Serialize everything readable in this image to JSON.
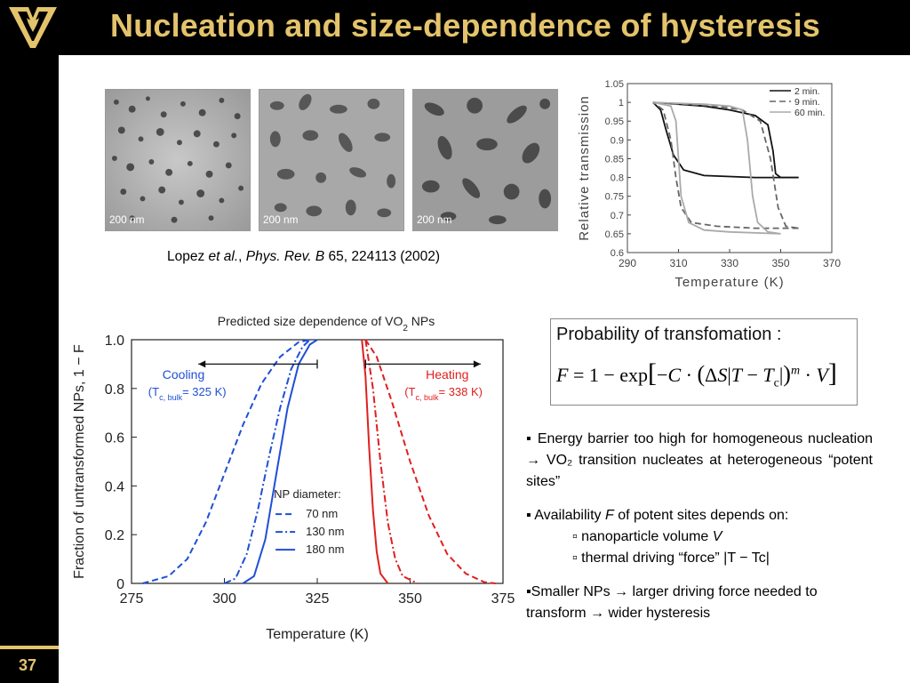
{
  "header": {
    "title": "Nucleation and size-dependence of hysteresis"
  },
  "sidebar": {
    "slide_number": "37"
  },
  "tem_images": [
    {
      "scale_label": "200 nm"
    },
    {
      "scale_label": "200 nm"
    },
    {
      "scale_label": "200 nm"
    }
  ],
  "citation": {
    "authors": "Lopez ",
    "etal": "et al.",
    "sep": ", ",
    "journal": "Phys. Rev. B",
    "ref": " 65, 224113 (2002)"
  },
  "formula": {
    "heading": "Probability of transfomation :",
    "equation": "F = 1 − exp[ −C · (ΔS|T − T"
  },
  "bullets": {
    "b1": "Energy barrier too high for homogeneous nucleation → VO₂ transition nucleates at heterogeneous “potent sites”",
    "b2_pre": "Availability ",
    "b2_var": "F",
    "b2_post": " of potent sites depends on:",
    "b2a_pre": "nanoparticle volume ",
    "b2a_var": "V",
    "b2b": "thermal driving “force” |T − Tc|",
    "b3": "Smaller NPs → larger driving force needed to transform → wider hysteresis"
  },
  "chart_data": [
    {
      "type": "line",
      "title": "",
      "xlabel": "Temperature (K)",
      "ylabel": "Relative transmission",
      "xlim": [
        290,
        370
      ],
      "ylim": [
        0.6,
        1.05
      ],
      "xticks": [
        "290",
        "310",
        "330",
        "350",
        "370"
      ],
      "yticks": [
        "0.6",
        "0.65",
        "0.7",
        "0.75",
        "0.8",
        "0.85",
        "0.9",
        "0.95",
        "1",
        "1.05"
      ],
      "legend_position": "top-right",
      "series": [
        {
          "name": "2 min.",
          "style": "solid",
          "color": "#111111",
          "heating": [
            [
              300,
              1.0
            ],
            [
              320,
              0.99
            ],
            [
              330,
              0.98
            ],
            [
              340,
              0.965
            ],
            [
              345,
              0.94
            ],
            [
              347,
              0.87
            ],
            [
              348,
              0.81
            ],
            [
              350,
              0.8
            ],
            [
              357,
              0.8
            ]
          ],
          "cooling": [
            [
              357,
              0.8
            ],
            [
              340,
              0.8
            ],
            [
              320,
              0.805
            ],
            [
              312,
              0.82
            ],
            [
              308,
              0.86
            ],
            [
              305,
              0.93
            ],
            [
              303,
              0.98
            ],
            [
              300,
              1.0
            ]
          ]
        },
        {
          "name": "9 min.",
          "style": "dashed",
          "color": "#666666",
          "heating": [
            [
              300,
              1.0
            ],
            [
              325,
              0.99
            ],
            [
              335,
              0.98
            ],
            [
              342,
              0.95
            ],
            [
              346,
              0.85
            ],
            [
              349,
              0.72
            ],
            [
              352,
              0.67
            ],
            [
              357,
              0.665
            ]
          ],
          "cooling": [
            [
              357,
              0.665
            ],
            [
              340,
              0.665
            ],
            [
              325,
              0.67
            ],
            [
              315,
              0.68
            ],
            [
              311,
              0.72
            ],
            [
              309,
              0.8
            ],
            [
              307,
              0.9
            ],
            [
              304,
              0.98
            ],
            [
              300,
              1.0
            ]
          ]
        },
        {
          "name": "60 min.",
          "style": "solid",
          "color": "#aaaaaa",
          "heating": [
            [
              300,
              1.0
            ],
            [
              320,
              0.995
            ],
            [
              330,
              0.99
            ],
            [
              335,
              0.98
            ],
            [
              337,
              0.9
            ],
            [
              339,
              0.75
            ],
            [
              341,
              0.68
            ],
            [
              345,
              0.655
            ],
            [
              350,
              0.65
            ]
          ],
          "cooling": [
            [
              350,
              0.65
            ],
            [
              330,
              0.655
            ],
            [
              320,
              0.66
            ],
            [
              314,
              0.68
            ],
            [
              311,
              0.75
            ],
            [
              310,
              0.85
            ],
            [
              309,
              0.95
            ],
            [
              307,
              0.99
            ],
            [
              300,
              1.0
            ]
          ]
        }
      ]
    },
    {
      "type": "line",
      "title": "Predicted size dependence of VO",
      "title_sub": "2",
      "title_tail": " NPs",
      "xlabel": "Temperature (K)",
      "ylabel": "Fraction of untransformed NPs, 1 − F",
      "xlim": [
        275,
        375
      ],
      "ylim": [
        0,
        1
      ],
      "xticks": [
        "275",
        "300",
        "325",
        "350",
        "375"
      ],
      "yticks": [
        "0",
        "0.2",
        "0.4",
        "0.6",
        "0.8",
        "1.0"
      ],
      "legend_title": "NP diameter:",
      "legend_position": "center",
      "annotations": {
        "cooling_label": "Cooling",
        "cooling_tc": "(T",
        "cooling_tc_sub": "c, bulk",
        "cooling_tc_tail": "= 325 K)",
        "heating_label": "Heating",
        "heating_tc": "(T",
        "heating_tc_sub": "c, bulk",
        "heating_tc_tail": "= 338 K)"
      },
      "colors": {
        "cooling": "#1f4fd6",
        "heating": "#e02020"
      },
      "series": [
        {
          "name": "70 nm",
          "style": "dashed",
          "cooling": [
            [
              278,
              0.0
            ],
            [
              285,
              0.03
            ],
            [
              290,
              0.1
            ],
            [
              295,
              0.25
            ],
            [
              300,
              0.45
            ],
            [
              305,
              0.65
            ],
            [
              310,
              0.82
            ],
            [
              315,
              0.93
            ],
            [
              320,
              0.99
            ],
            [
              323,
              1.0
            ]
          ],
          "heating": [
            [
              338,
              1.0
            ],
            [
              341,
              0.93
            ],
            [
              345,
              0.75
            ],
            [
              350,
              0.5
            ],
            [
              355,
              0.28
            ],
            [
              360,
              0.12
            ],
            [
              365,
              0.04
            ],
            [
              370,
              0.005
            ],
            [
              373,
              0.0
            ]
          ]
        },
        {
          "name": "130 nm",
          "style": "dashdot",
          "cooling": [
            [
              300,
              0.0
            ],
            [
              303,
              0.02
            ],
            [
              306,
              0.12
            ],
            [
              309,
              0.3
            ],
            [
              312,
              0.52
            ],
            [
              315,
              0.72
            ],
            [
              318,
              0.88
            ],
            [
              321,
              0.97
            ],
            [
              323,
              1.0
            ]
          ],
          "heating": [
            [
              338,
              1.0
            ],
            [
              340,
              0.8
            ],
            [
              342,
              0.5
            ],
            [
              344,
              0.25
            ],
            [
              346,
              0.1
            ],
            [
              348,
              0.03
            ],
            [
              352,
              0.0
            ]
          ]
        },
        {
          "name": "180 nm",
          "style": "solid",
          "cooling": [
            [
              305,
              0.0
            ],
            [
              308,
              0.03
            ],
            [
              311,
              0.18
            ],
            [
              314,
              0.45
            ],
            [
              317,
              0.72
            ],
            [
              320,
              0.9
            ],
            [
              323,
              0.98
            ],
            [
              325,
              1.0
            ]
          ],
          "heating": [
            [
              337,
              1.0
            ],
            [
              338,
              0.85
            ],
            [
              339,
              0.55
            ],
            [
              340,
              0.3
            ],
            [
              341,
              0.13
            ],
            [
              342,
              0.04
            ],
            [
              344,
              0.0
            ]
          ]
        }
      ]
    }
  ]
}
